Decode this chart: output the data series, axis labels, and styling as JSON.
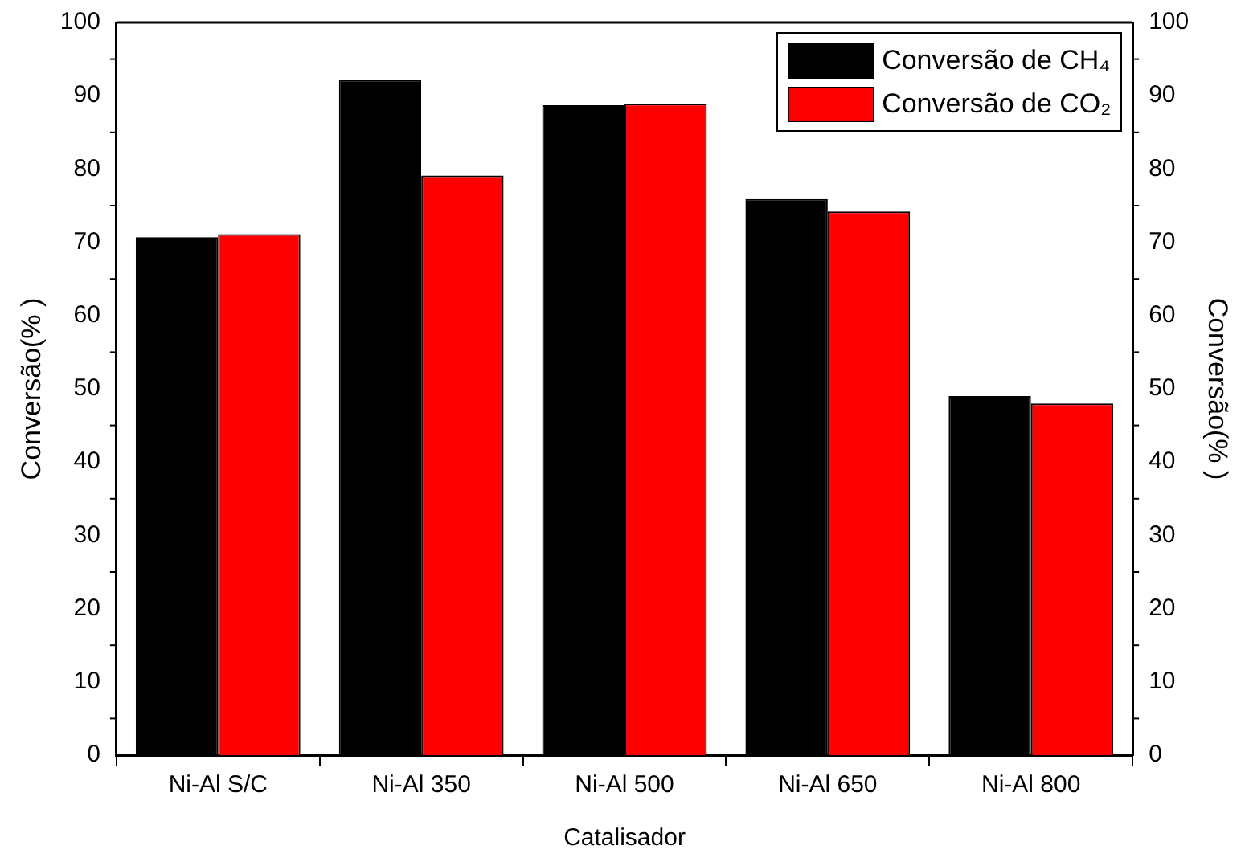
{
  "chart_data": {
    "type": "bar",
    "xlabel": "Catalisador",
    "ylabel": "Conversão(% )",
    "y2label": "Conversão(% )",
    "categories": [
      "Ni-Al S/C",
      "Ni-Al 350",
      "Ni-Al 500",
      "Ni-Al 650",
      "Ni-Al 800"
    ],
    "series": [
      {
        "name": "Conversão de CH₄",
        "color": "#000000",
        "values": [
          70.7,
          92.2,
          88.7,
          75.9,
          49
        ]
      },
      {
        "name": "Conversão de CO₂",
        "color": "#ff0000",
        "values": [
          71.1,
          79.1,
          88.9,
          74.2,
          48
        ]
      }
    ],
    "ylim": [
      0,
      100
    ],
    "yticks": [
      0,
      10,
      20,
      30,
      40,
      50,
      60,
      70,
      80,
      90,
      100
    ],
    "y2lim": [
      0,
      100
    ],
    "y2ticks": [
      0,
      10,
      20,
      30,
      40,
      50,
      60,
      70,
      80,
      90,
      100
    ],
    "grid": false,
    "legend": "top right"
  }
}
